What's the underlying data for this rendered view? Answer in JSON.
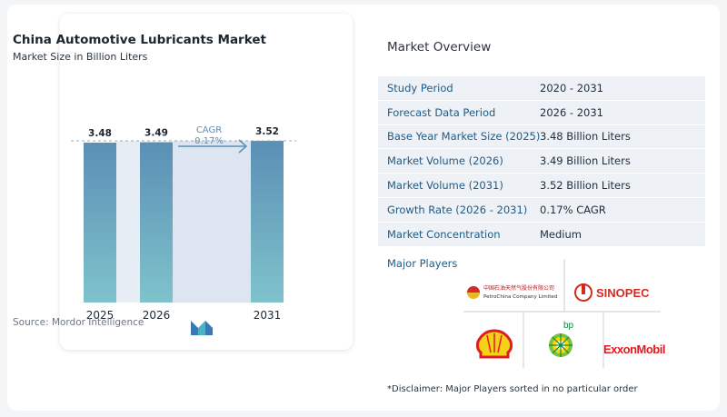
{
  "chart": {
    "title": "China Automotive Lubricants Market",
    "subtitle": "Market Size in Billion Liters",
    "source": "Source:  Mordor Intelligence",
    "cagr_label": "CAGR",
    "cagr_value": "0.17%"
  },
  "chart_data": {
    "type": "bar",
    "categories": [
      "2025",
      "2026",
      "2031"
    ],
    "values": [
      3.48,
      3.49,
      3.52
    ],
    "value_labels": [
      "3.48",
      "3.49",
      "3.52"
    ],
    "title": "China Automotive Lubricants Market",
    "subtitle": "Market Size in Billion Liters",
    "xlabel": "",
    "ylabel": "",
    "annotation": "CAGR 0.17%",
    "grid": false,
    "colors": {
      "bar_top": "#5b8fb5",
      "bar_bottom": "#7fc3cc",
      "band": "#dde6f0",
      "arrow": "#5b8fb5"
    }
  },
  "overview": {
    "title": "Market Overview",
    "rows": [
      {
        "label": "Study Period",
        "value": "2020 - 2031"
      },
      {
        "label": "Forecast Data Period",
        "value": "2026 - 2031"
      },
      {
        "label": "Base Year Market Size (2025)",
        "value": "3.48 Billion Liters"
      },
      {
        "label": "Market Volume (2026)",
        "value": "3.49 Billion Liters"
      },
      {
        "label": "Market Volume (2031)",
        "value": "3.52 Billion Liters"
      },
      {
        "label": "Growth Rate (2026 - 2031)",
        "value": "0.17% CAGR"
      },
      {
        "label": "Market Concentration",
        "value": "Medium"
      }
    ]
  },
  "players": {
    "title": "Major Players",
    "logos": [
      {
        "name": "PetroChina",
        "chinese": "中国石油天然气股份有限公司",
        "english": "PetroChina Company Limited"
      },
      {
        "name": "Sinopec",
        "text": "SINOPEC"
      },
      {
        "name": "Shell"
      },
      {
        "name": "bp",
        "text": "bp"
      },
      {
        "name": "ExxonMobil",
        "text": "ExxonMobil"
      }
    ],
    "disclaimer": "*Disclaimer: Major Players sorted in no particular order"
  }
}
